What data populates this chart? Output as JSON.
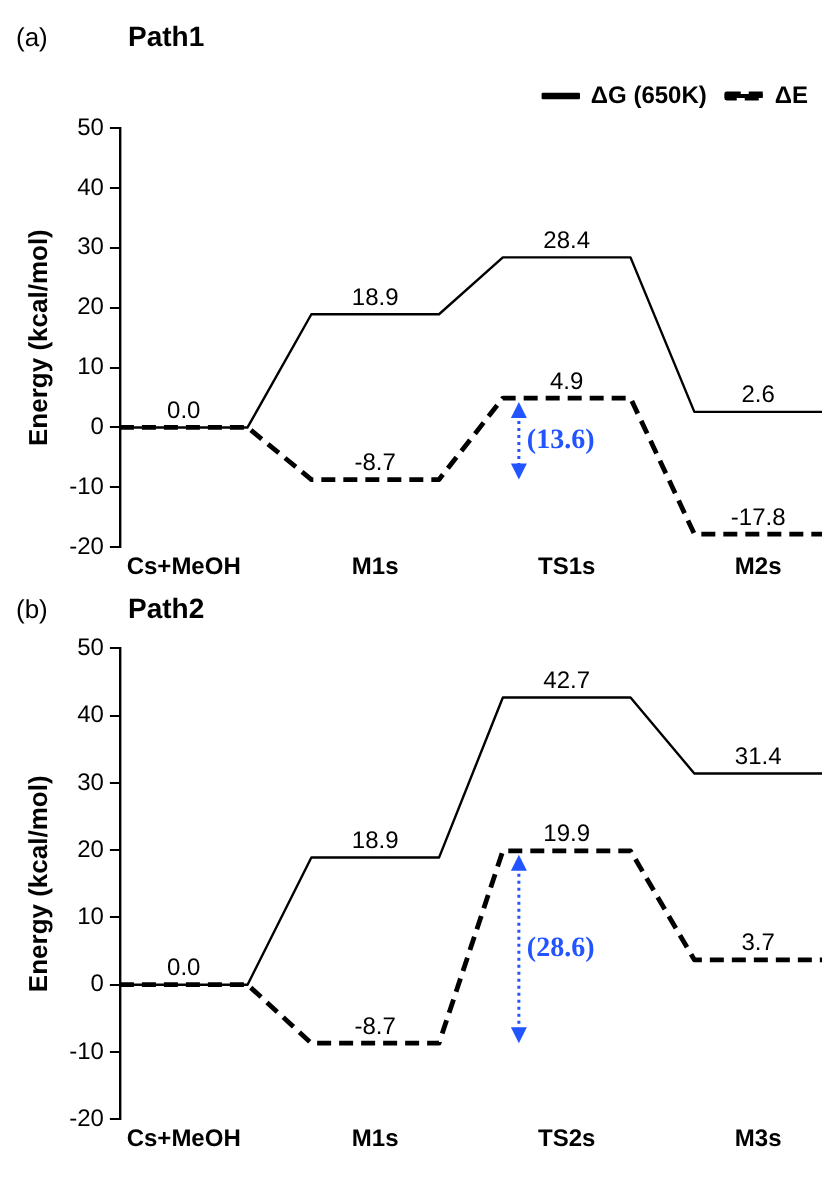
{
  "chart_data": [
    {
      "type": "line",
      "title": "Path1",
      "ylabel": "Energy (kcal/mol)",
      "annotations": [
        "(a)",
        "(13.6)"
      ],
      "categories": [
        null,
        "Cs+MeOH",
        null,
        null,
        "M1s",
        null,
        null,
        "TS1s",
        null,
        null,
        "M2s",
        null
      ],
      "ylim": [
        -20,
        50
      ],
      "yticks": [
        -20,
        -10,
        0,
        10,
        20,
        30,
        40,
        50
      ],
      "grid": false,
      "legend": "top right",
      "marker": "none",
      "series": [
        {
          "name": "ΔG (650K)",
          "color": "#000000",
          "line_style": "solid",
          "values": [
            0,
            0,
            0,
            18.9,
            18.9,
            18.9,
            28.4,
            28.4,
            28.4,
            2.6,
            2.6,
            2.6
          ],
          "value_labels": [
            null,
            "0.0",
            null,
            null,
            "18.9",
            null,
            null,
            "28.4",
            null,
            null,
            "2.6",
            null
          ]
        },
        {
          "name": "ΔE",
          "color": "#000000",
          "line_style": "dashed",
          "values": [
            0,
            0,
            0,
            -8.7,
            -8.7,
            -8.7,
            4.9,
            4.9,
            4.9,
            -17.8,
            -17.8,
            -17.8
          ],
          "value_labels": [
            null,
            null,
            null,
            null,
            "-8.7",
            null,
            null,
            "4.9",
            null,
            null,
            "-17.8",
            null
          ]
        }
      ]
    },
    {
      "type": "line",
      "title": "Path2",
      "ylabel": "Energy (kcal/mol)",
      "annotations": [
        "(b)",
        "(28.6)"
      ],
      "categories": [
        null,
        "Cs+MeOH",
        null,
        null,
        "M1s",
        null,
        null,
        "TS2s",
        null,
        null,
        "M3s",
        null
      ],
      "ylim": [
        -20,
        50
      ],
      "yticks": [
        -20,
        -10,
        0,
        10,
        20,
        30,
        40,
        50
      ],
      "grid": false,
      "marker": "none",
      "series": [
        {
          "color": "#000000",
          "line_style": "solid",
          "values": [
            0,
            0,
            0,
            18.9,
            18.9,
            18.9,
            42.7,
            42.7,
            42.7,
            31.4,
            31.4,
            31.4
          ],
          "value_labels": [
            null,
            "0.0",
            null,
            null,
            "18.9",
            null,
            null,
            "42.7",
            null,
            null,
            "31.4",
            null
          ]
        },
        {
          "color": "#000000",
          "line_style": "dashed",
          "values": [
            0,
            0,
            0,
            -8.7,
            -8.7,
            -8.7,
            19.9,
            19.9,
            19.9,
            3.7,
            3.7,
            3.7
          ],
          "value_labels": [
            null,
            null,
            null,
            null,
            "-8.7",
            null,
            null,
            "19.9",
            null,
            null,
            "3.7",
            null
          ]
        }
      ]
    }
  ]
}
